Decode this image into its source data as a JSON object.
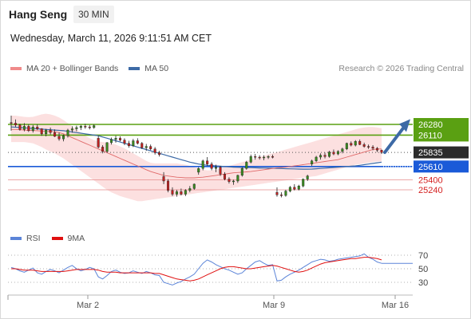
{
  "header": {
    "title": "Hang Seng",
    "timeframe": "30 MIN"
  },
  "datetime": "Wednesday, March 11, 2026 9:11:51 AM CET",
  "copyright": "Research © 2026 Trading Central",
  "legend_main": [
    {
      "label": "MA 20 + Bollinger Bands",
      "color": "#f08a8a"
    },
    {
      "label": "MA 50",
      "color": "#3d6aa6"
    }
  ],
  "legend_rsi": [
    {
      "label": "RSI",
      "color": "#5b84d8"
    },
    {
      "label": "9MA",
      "color": "#e01010"
    }
  ],
  "colors": {
    "resistance": "#5aa012",
    "current": "#2b2b2b",
    "pivot": "#1a5ad8",
    "support": "#d42020",
    "arrow": "#3d6aa6"
  },
  "chart_data": [
    {
      "type": "candlestick",
      "title": "",
      "x_ticks": [
        "Mar 2",
        "Mar 9",
        "Mar 16"
      ],
      "ylim": [
        24950,
        26500
      ],
      "levels": [
        {
          "value": 26280,
          "label": "26280",
          "kind": "resistance"
        },
        {
          "value": 26110,
          "label": "26110",
          "kind": "resistance"
        },
        {
          "value": 25835,
          "label": "25835",
          "kind": "current"
        },
        {
          "value": 25610,
          "label": "25610",
          "kind": "pivot"
        },
        {
          "value": 25400,
          "label": "25400",
          "kind": "support"
        },
        {
          "value": 25240,
          "label": "25240",
          "kind": "support"
        }
      ],
      "ohlc": [
        [
          26310,
          26420,
          26180,
          26300
        ],
        [
          26300,
          26360,
          26240,
          26270
        ],
        [
          26270,
          26290,
          26180,
          26200
        ],
        [
          26200,
          26300,
          26170,
          26250
        ],
        [
          26250,
          26280,
          26160,
          26180
        ],
        [
          26180,
          26270,
          26150,
          26240
        ],
        [
          26240,
          26280,
          26190,
          26210
        ],
        [
          26210,
          26220,
          26100,
          26130
        ],
        [
          26130,
          26210,
          26090,
          26190
        ],
        [
          26190,
          26230,
          26120,
          26150
        ],
        [
          26150,
          26200,
          26080,
          26090
        ],
        [
          26090,
          26150,
          26020,
          26050
        ],
        [
          26050,
          26120,
          26010,
          26100
        ],
        [
          26100,
          26210,
          26070,
          26190
        ],
        [
          26190,
          26250,
          26150,
          26210
        ],
        [
          26210,
          26260,
          26170,
          26230
        ],
        [
          26230,
          26270,
          26190,
          26250
        ],
        [
          26250,
          26290,
          26210,
          26240
        ],
        [
          26240,
          26270,
          26200,
          26230
        ],
        [
          26230,
          26280,
          26210,
          26260
        ],
        [
          26060,
          26100,
          25900,
          25920
        ],
        [
          25920,
          25950,
          25820,
          25850
        ],
        [
          25850,
          26000,
          25830,
          25990
        ],
        [
          25990,
          26070,
          25960,
          26040
        ],
        [
          26040,
          26100,
          25990,
          26060
        ],
        [
          26060,
          26090,
          26010,
          26030
        ],
        [
          26030,
          26060,
          25950,
          25980
        ],
        [
          25980,
          26020,
          25910,
          25940
        ],
        [
          25940,
          26050,
          25920,
          26020
        ],
        [
          26020,
          26060,
          25960,
          25980
        ],
        [
          25980,
          26000,
          25890,
          25910
        ],
        [
          25910,
          25970,
          25860,
          25930
        ],
        [
          25930,
          25960,
          25870,
          25890
        ],
        [
          25890,
          25920,
          25800,
          25830
        ],
        [
          25830,
          25860,
          25770,
          25800
        ],
        [
          25450,
          25520,
          25330,
          25380
        ],
        [
          25380,
          25410,
          25200,
          25230
        ],
        [
          25230,
          25280,
          25140,
          25170
        ],
        [
          25170,
          25240,
          25130,
          25210
        ],
        [
          25210,
          25260,
          25150,
          25170
        ],
        [
          25170,
          25250,
          25140,
          25230
        ],
        [
          25230,
          25300,
          25200,
          25260
        ],
        [
          25260,
          25340,
          25240,
          25330
        ],
        [
          25520,
          25600,
          25480,
          25580
        ],
        [
          25580,
          25720,
          25550,
          25700
        ],
        [
          25700,
          25760,
          25620,
          25650
        ],
        [
          25650,
          25680,
          25550,
          25580
        ],
        [
          25580,
          25640,
          25520,
          25600
        ],
        [
          25600,
          25620,
          25460,
          25490
        ],
        [
          25490,
          25520,
          25390,
          25410
        ],
        [
          25410,
          25440,
          25340,
          25370
        ],
        [
          25370,
          25400,
          25320,
          25380
        ],
        [
          25380,
          25480,
          25350,
          25470
        ],
        [
          25470,
          25600,
          25450,
          25580
        ],
        [
          25580,
          25700,
          25560,
          25680
        ],
        [
          25680,
          25800,
          25660,
          25770
        ],
        [
          25770,
          25810,
          25720,
          25760
        ],
        [
          25760,
          25790,
          25720,
          25750
        ],
        [
          25750,
          25790,
          25710,
          25760
        ],
        [
          25760,
          25790,
          25730,
          25770
        ],
        [
          25770,
          25800,
          25740,
          25760
        ],
        [
          25200,
          25280,
          25130,
          25160
        ],
        [
          25160,
          25200,
          25120,
          25150
        ],
        [
          25150,
          25240,
          25130,
          25220
        ],
        [
          25220,
          25300,
          25200,
          25280
        ],
        [
          25280,
          25330,
          25230,
          25250
        ],
        [
          25250,
          25320,
          25230,
          25300
        ],
        [
          25300,
          25420,
          25280,
          25410
        ],
        [
          25410,
          25480,
          25380,
          25460
        ],
        [
          25650,
          25720,
          25620,
          25700
        ],
        [
          25700,
          25780,
          25680,
          25760
        ],
        [
          25760,
          25820,
          25720,
          25790
        ],
        [
          25790,
          25830,
          25740,
          25770
        ],
        [
          25770,
          25860,
          25750,
          25840
        ],
        [
          25840,
          25880,
          25790,
          25810
        ],
        [
          25810,
          25870,
          25790,
          25850
        ],
        [
          25850,
          25910,
          25820,
          25890
        ],
        [
          25890,
          25990,
          25870,
          25980
        ],
        [
          25980,
          26010,
          25930,
          25950
        ],
        [
          25950,
          26030,
          25930,
          26010
        ],
        [
          26010,
          26040,
          25950,
          25960
        ],
        [
          25960,
          25990,
          25910,
          25930
        ],
        [
          25930,
          25960,
          25890,
          25920
        ],
        [
          25920,
          25950,
          25870,
          25900
        ],
        [
          25900,
          25920,
          25840,
          25870
        ],
        [
          25870,
          25880,
          25810,
          25835
        ]
      ],
      "ma20": [
        26200,
        26200,
        26195,
        26190,
        26185,
        26182,
        26180,
        26175,
        26170,
        26168,
        26165,
        26150,
        26130,
        26100,
        26070,
        26040,
        26010,
        25980,
        25950,
        25920,
        25890,
        25860,
        25830,
        25800,
        25770,
        25740,
        25710,
        25680,
        25650,
        25620,
        25590,
        25560,
        25530,
        25510,
        25490,
        25470,
        25460,
        25450,
        25440,
        25435,
        25430,
        25430,
        25430,
        25435,
        25440,
        25450,
        25460,
        25470,
        25480,
        25490,
        25500,
        25510,
        25515,
        25520,
        25525,
        25530,
        25540,
        25550,
        25560,
        25570,
        25580,
        25590,
        25595,
        25600,
        25610,
        25620,
        25630,
        25640,
        25650,
        25660,
        25670,
        25680,
        25690,
        25700,
        25710,
        25720,
        25740,
        25760,
        25780,
        25800,
        25820,
        25840,
        25860,
        25880,
        25890,
        25890
      ],
      "ma50": [
        26240,
        26235,
        26230,
        26225,
        26220,
        26215,
        26210,
        26205,
        26200,
        26195,
        26190,
        26185,
        26180,
        26170,
        26160,
        26150,
        26140,
        26130,
        26120,
        26110,
        26100,
        26080,
        26060,
        26040,
        26020,
        26000,
        25980,
        25960,
        25940,
        25920,
        25900,
        25880,
        25860,
        25840,
        25820,
        25800,
        25780,
        25760,
        25740,
        25720,
        25700,
        25680,
        25665,
        25650,
        25640,
        25630,
        25625,
        25620,
        25615,
        25610,
        25605,
        25600,
        25598,
        25596,
        25594,
        25592,
        25590,
        25588,
        25586,
        25584,
        25582,
        25580,
        25578,
        25576,
        25574,
        25572,
        25570,
        25568,
        25568,
        25570,
        25575,
        25580,
        25585,
        25590,
        25595,
        25600,
        25605,
        25610,
        25615,
        25620,
        25630,
        25640,
        25650,
        25660,
        25670,
        25680
      ],
      "bb_upper": [
        26420,
        26420,
        26410,
        26400,
        26395,
        26400,
        26420,
        26440,
        26450,
        26440,
        26420,
        26390,
        26350,
        26300,
        26250,
        26200,
        26150,
        26100,
        26060,
        26030,
        26010,
        26000,
        25990,
        25980,
        25960,
        25930,
        25900,
        25860,
        25820,
        25780,
        25740,
        25700,
        25670,
        25660,
        25660,
        25660,
        25660,
        25660,
        25660,
        25650,
        25640,
        25620,
        25600,
        25580,
        25560,
        25550,
        25550,
        25560,
        25580,
        25600,
        25620,
        25640,
        25660,
        25680,
        25700,
        25720,
        25740,
        25760,
        25780,
        25800,
        25820,
        25840,
        25860,
        25880,
        25900,
        25920,
        25940,
        25960,
        25980,
        26000,
        26020,
        26040,
        26060,
        26080,
        26100,
        26120,
        26140,
        26160,
        26180,
        26200,
        26220,
        26230,
        26240,
        26240,
        26230,
        26220
      ],
      "bb_lower": [
        26000,
        26000,
        26000,
        26000,
        25990,
        25980,
        25950,
        25920,
        25880,
        25850,
        25820,
        25780,
        25740,
        25690,
        25640,
        25590,
        25540,
        25490,
        25440,
        25390,
        25340,
        25290,
        25240,
        25200,
        25170,
        25140,
        25120,
        25100,
        25080,
        25060,
        25060,
        25070,
        25080,
        25090,
        25100,
        25110,
        25120,
        25130,
        25140,
        25150,
        25160,
        25170,
        25180,
        25190,
        25200,
        25210,
        25220,
        25230,
        25240,
        25250,
        25260,
        25270,
        25280,
        25290,
        25300,
        25310,
        25320,
        25330,
        25340,
        25350,
        25360,
        25370,
        25380,
        25390,
        25400,
        25410,
        25420,
        25430,
        25440,
        25450,
        25460,
        25480,
        25500,
        25520,
        25540,
        25560,
        25580,
        25600,
        25620,
        25640,
        25650,
        25660,
        25670,
        25680,
        25690,
        25690
      ]
    },
    {
      "type": "line",
      "title": "",
      "ylim": [
        10,
        80
      ],
      "y_ticks": [
        70,
        50,
        30
      ],
      "series": [
        {
          "name": "RSI",
          "values": [
            52,
            50,
            47,
            45,
            48,
            51,
            44,
            42,
            46,
            49,
            47,
            44,
            48,
            52,
            55,
            50,
            47,
            49,
            52,
            50,
            38,
            35,
            40,
            46,
            48,
            45,
            43,
            44,
            47,
            45,
            43,
            46,
            44,
            41,
            40,
            30,
            28,
            26,
            29,
            31,
            35,
            38,
            42,
            50,
            58,
            63,
            60,
            56,
            53,
            50,
            48,
            45,
            42,
            44,
            50,
            55,
            60,
            62,
            58,
            55,
            56,
            32,
            33,
            38,
            42,
            45,
            48,
            52,
            56,
            60,
            62,
            64,
            63,
            61,
            62,
            64,
            65,
            66,
            67,
            68,
            69,
            72,
            67,
            64,
            60,
            58
          ]
        },
        {
          "name": "9MA",
          "values": [
            50,
            50,
            49,
            48,
            48,
            48,
            47,
            46,
            46,
            46,
            46,
            46,
            46,
            47,
            48,
            49,
            49,
            49,
            49,
            49,
            48,
            46,
            45,
            45,
            45,
            44,
            44,
            44,
            44,
            44,
            44,
            44,
            44,
            43,
            43,
            41,
            39,
            37,
            35,
            34,
            33,
            32,
            33,
            35,
            38,
            41,
            44,
            47,
            50,
            52,
            53,
            53,
            52,
            51,
            50,
            50,
            51,
            52,
            53,
            54,
            55,
            54,
            52,
            50,
            48,
            46,
            45,
            46,
            48,
            51,
            54,
            57,
            59,
            60,
            61,
            62,
            63,
            64,
            65,
            65,
            66,
            67,
            67,
            66,
            65,
            63
          ]
        }
      ]
    }
  ]
}
